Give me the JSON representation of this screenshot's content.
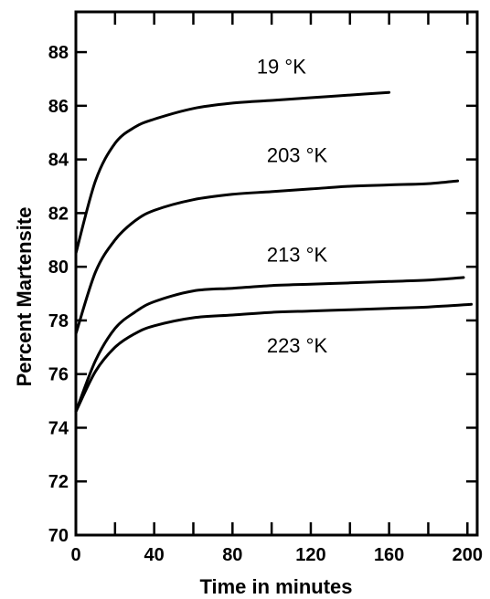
{
  "chart_data": {
    "type": "line",
    "title": "",
    "xlabel": "Time in minutes",
    "ylabel": "Percent Martensite",
    "xlim": [
      0,
      205
    ],
    "ylim": [
      70,
      89.5
    ],
    "x_ticks": [
      0,
      40,
      80,
      120,
      160,
      200
    ],
    "x_minor_ticks": [
      20,
      60,
      100,
      140,
      180
    ],
    "y_ticks": [
      70,
      72,
      74,
      76,
      78,
      80,
      82,
      84,
      86,
      88
    ],
    "grid": false,
    "legend": "none",
    "series": [
      {
        "label": "19 °K",
        "x": [
          0,
          10,
          20,
          30,
          40,
          60,
          80,
          100,
          120,
          140,
          160
        ],
        "y": [
          80.5,
          83.2,
          84.6,
          85.2,
          85.5,
          85.9,
          86.1,
          86.2,
          86.3,
          86.4,
          86.5
        ]
      },
      {
        "label": "203 °K",
        "x": [
          0,
          10,
          20,
          30,
          40,
          60,
          80,
          100,
          120,
          140,
          160,
          180,
          195
        ],
        "y": [
          77.5,
          79.8,
          81.0,
          81.7,
          82.1,
          82.5,
          82.7,
          82.8,
          82.9,
          83.0,
          83.05,
          83.1,
          83.2
        ]
      },
      {
        "label": "213 °K",
        "x": [
          0,
          10,
          20,
          30,
          40,
          60,
          80,
          100,
          120,
          140,
          160,
          180,
          198
        ],
        "y": [
          74.6,
          76.5,
          77.7,
          78.3,
          78.7,
          79.1,
          79.2,
          79.3,
          79.35,
          79.4,
          79.45,
          79.5,
          79.6
        ]
      },
      {
        "label": "223 °K",
        "x": [
          0,
          10,
          20,
          30,
          40,
          60,
          80,
          100,
          120,
          140,
          160,
          180,
          202
        ],
        "y": [
          74.6,
          76.1,
          77.0,
          77.5,
          77.8,
          78.1,
          78.2,
          78.3,
          78.35,
          78.4,
          78.45,
          78.5,
          78.6
        ]
      }
    ],
    "annotations": [
      {
        "text": "19 °K",
        "x": 105,
        "y": 87.2
      },
      {
        "text": "203 °K",
        "x": 113,
        "y": 83.9
      },
      {
        "text": "213 °K",
        "x": 113,
        "y": 80.2
      },
      {
        "text": "223 °K",
        "x": 113,
        "y": 76.8
      }
    ]
  }
}
